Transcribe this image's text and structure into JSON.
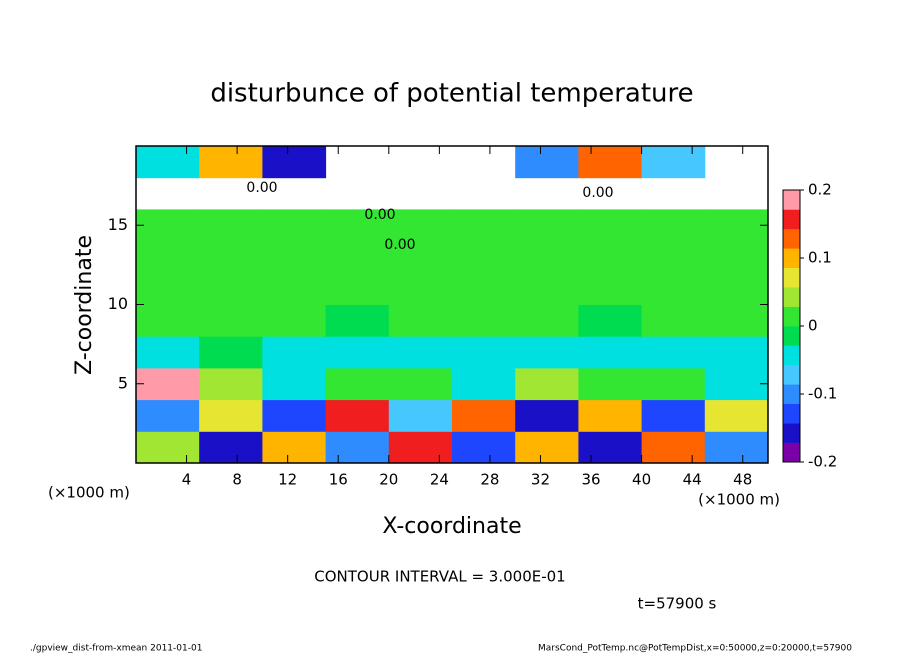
{
  "chart_data": {
    "type": "heatmap",
    "title": "disturbunce of potential temperature",
    "x_label": "X-coordinate",
    "y_label": "Z-coordinate",
    "x_unit_label": "(×1000 m)",
    "y_unit_label": "(×1000 m)",
    "xlim": [
      0,
      50
    ],
    "ylim": [
      0,
      20
    ],
    "xticks": [
      4,
      8,
      12,
      16,
      20,
      24,
      28,
      32,
      36,
      40,
      44,
      48
    ],
    "yticks": [
      5,
      10,
      15
    ],
    "x": [
      0,
      5,
      10,
      15,
      20,
      25,
      30,
      35,
      40,
      45,
      50
    ],
    "y": [
      0,
      2,
      4,
      6,
      8,
      10,
      12,
      14,
      16,
      18,
      20
    ],
    "z": [
      [
        0.05,
        -0.15,
        0.1,
        -0.1,
        0.15,
        -0.12,
        0.1,
        -0.15,
        0.12,
        -0.1
      ],
      [
        -0.1,
        0.08,
        -0.12,
        0.15,
        -0.08,
        0.12,
        -0.15,
        0.1,
        -0.12,
        0.08
      ],
      [
        0.18,
        0.03,
        -0.05,
        0.02,
        0.0,
        -0.03,
        0.03,
        0.0,
        0.02,
        -0.04
      ],
      [
        -0.03,
        -0.02,
        -0.04,
        -0.03,
        -0.04,
        -0.03,
        -0.04,
        -0.03,
        -0.04,
        -0.03
      ],
      [
        0.0,
        0.01,
        0.0,
        -0.01,
        0.0,
        0.01,
        0.0,
        -0.01,
        0.0,
        0.01
      ],
      [
        0.01,
        0.0,
        0.02,
        0.0,
        0.01,
        0.0,
        0.01,
        0.0,
        0.02,
        0.0
      ],
      [
        0.0,
        0.0,
        0.01,
        0.0,
        0.0,
        0.0,
        0.01,
        0.0,
        0.0,
        0.0
      ],
      [
        0.0,
        0.01,
        0.0,
        0.0,
        0.0,
        0.0,
        0.0,
        0.01,
        0.0,
        0.0
      ],
      [
        null,
        null,
        null,
        null,
        null,
        null,
        null,
        null,
        null,
        null
      ],
      [
        -0.05,
        0.1,
        -0.15,
        null,
        null,
        null,
        -0.1,
        0.12,
        -0.08,
        null
      ]
    ],
    "clim": [
      -0.2,
      0.2
    ],
    "cticks": [
      -0.2,
      -0.1,
      0,
      0.1,
      0.2
    ],
    "colors": [
      "#7a00a8",
      "#1a10c8",
      "#1e46ff",
      "#2e8cff",
      "#46c8ff",
      "#00e0e0",
      "#00dc50",
      "#32e632",
      "#a0e632",
      "#e6e632",
      "#ffb400",
      "#ff6400",
      "#f01e1e",
      "#ff9aa8"
    ],
    "contour_labels": [
      "0.00",
      "0.00",
      "0.00",
      "0.00"
    ],
    "contour_interval": "CONTOUR INTERVAL = 3.000E-01",
    "time_label": "t=57900 s",
    "footer_left": "./gpview_dist-from-xmean   2011-01-01",
    "footer_right": "MarsCond_PotTemp.nc@PotTempDist,x=0:50000,z=0:20000,t=57900"
  }
}
